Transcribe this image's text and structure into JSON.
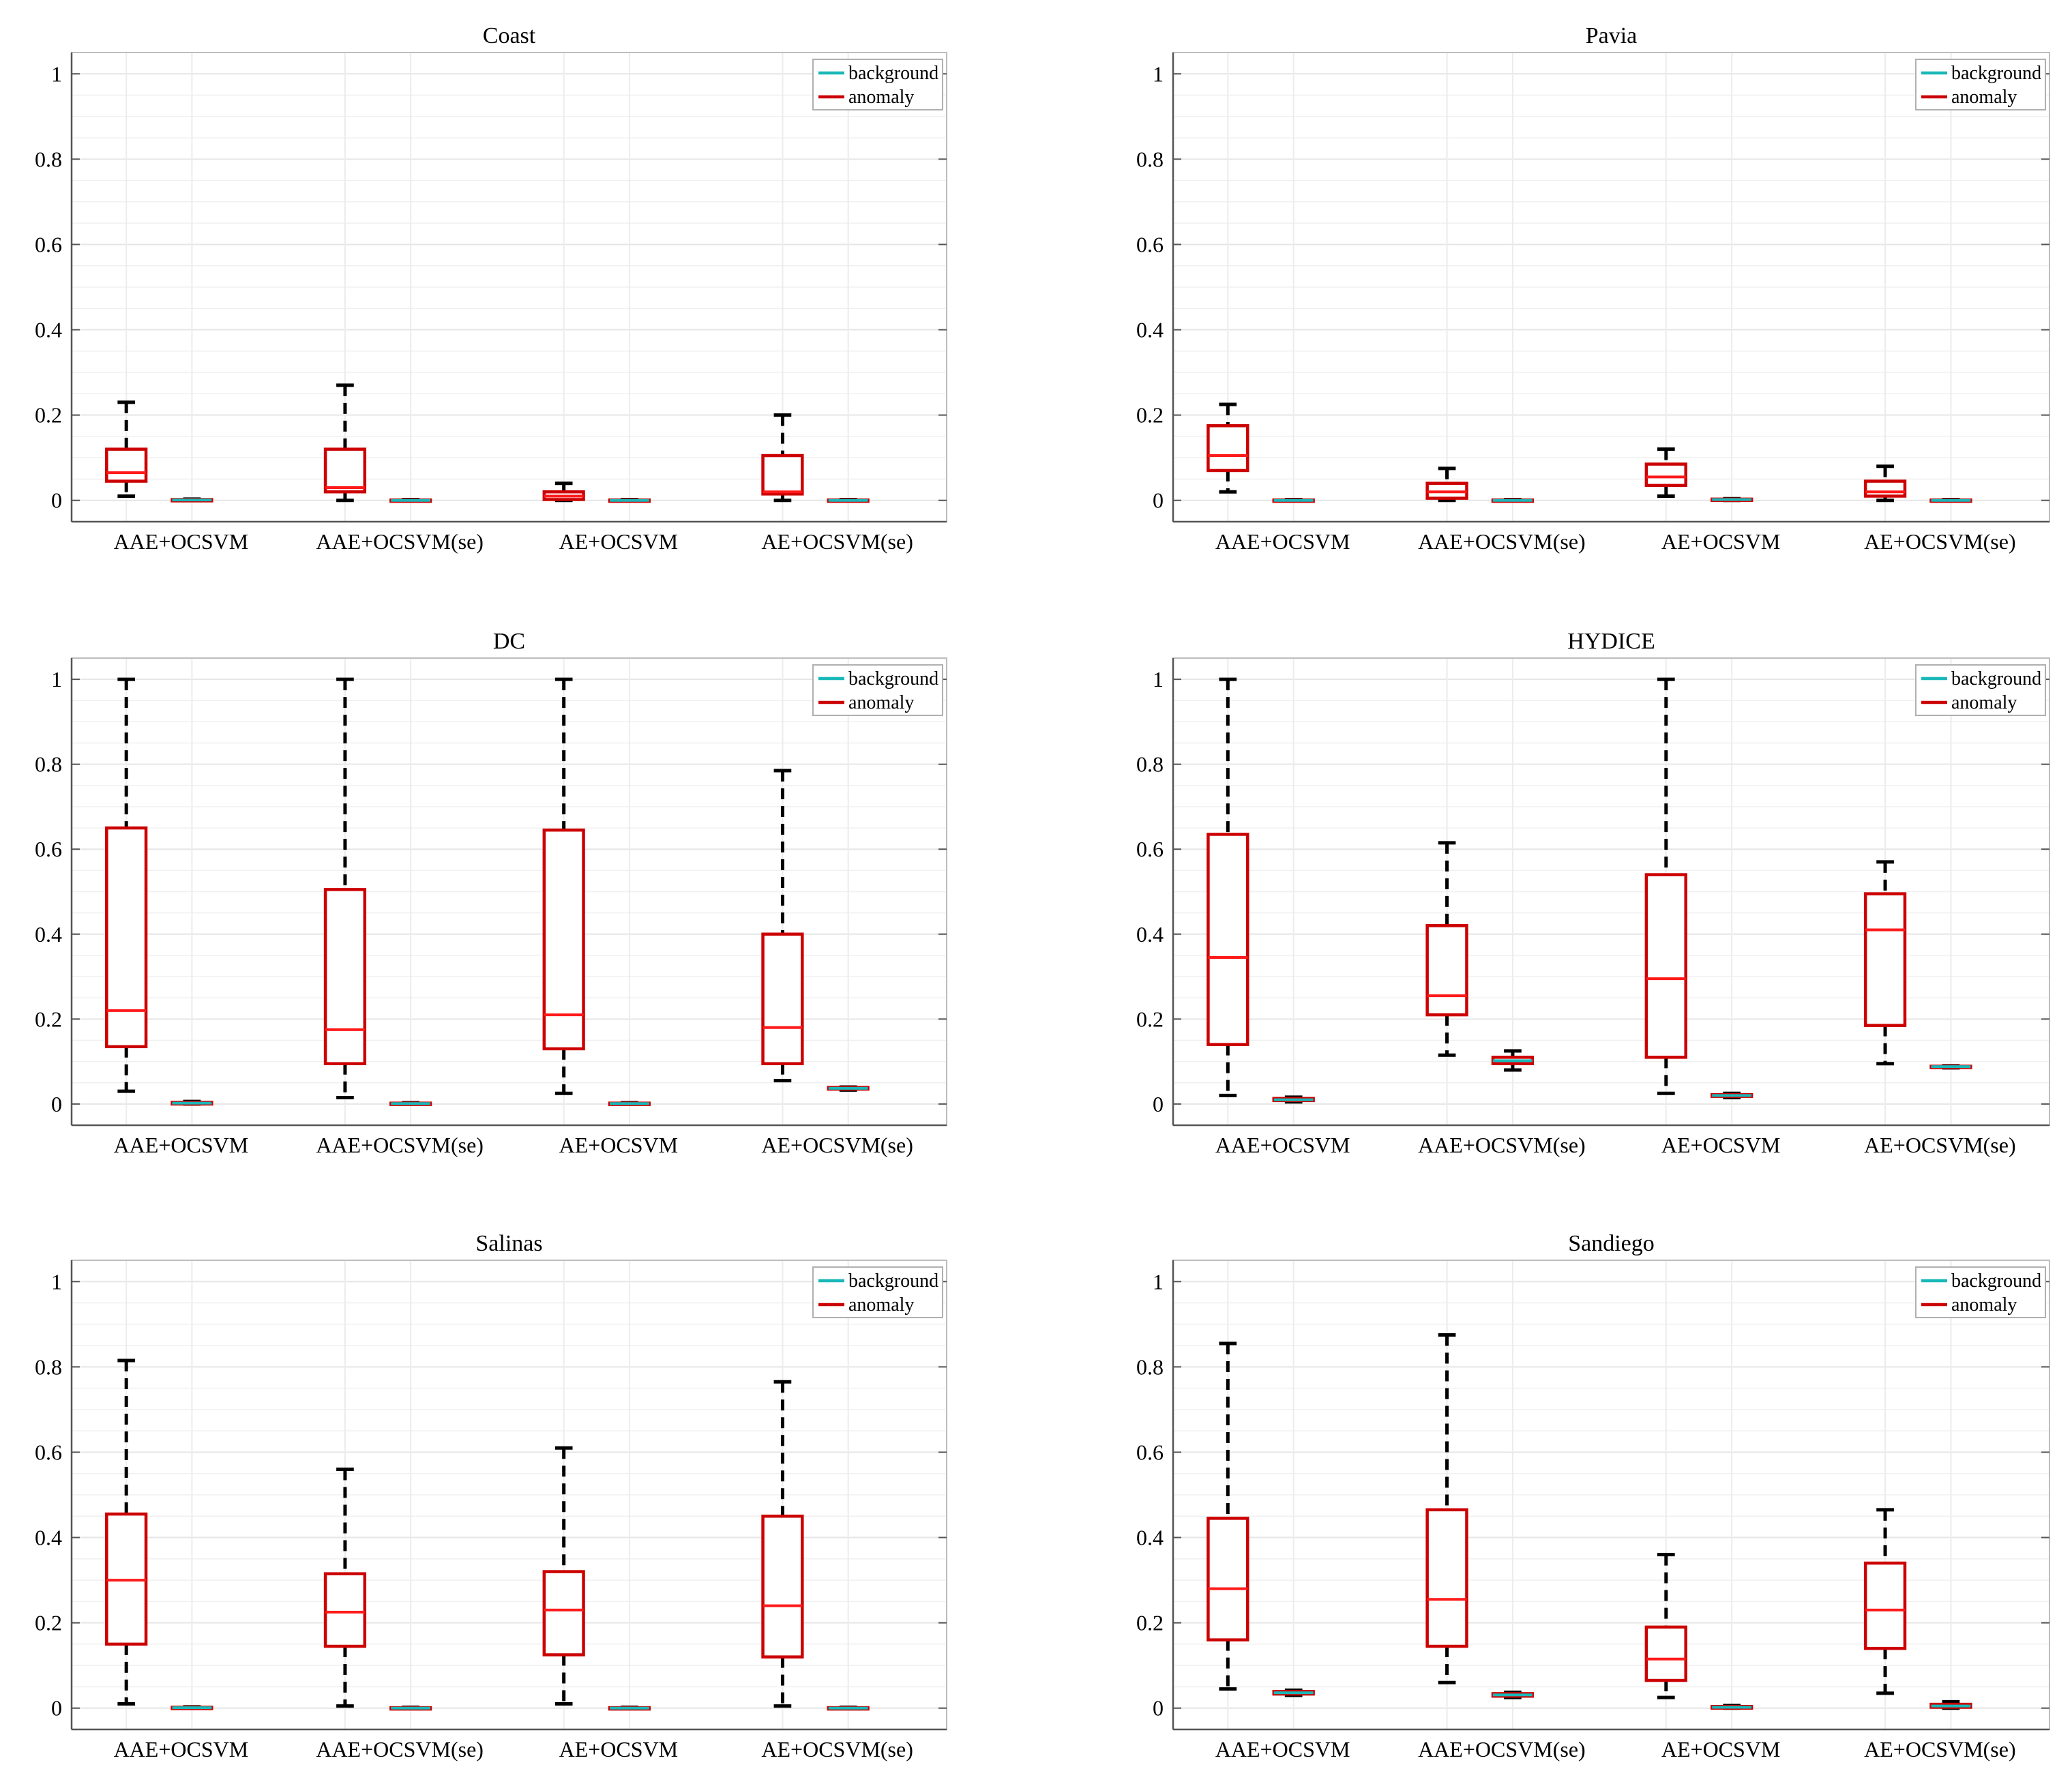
{
  "figure": {
    "categories": [
      "AAE+OCSVM",
      "AAE+OCSVM(se)",
      "AE+OCSVM",
      "AE+OCSVM(se)"
    ],
    "legend": [
      "background",
      "anomaly"
    ],
    "colors": {
      "background": "#19b8b8",
      "anomaly": "#cc0000",
      "whisker": "#000000",
      "grid": "#e6e6e6",
      "axis": "#555555"
    }
  },
  "chart_data": [
    {
      "type": "box",
      "title": "Coast",
      "categories": [
        "AAE+OCSVM",
        "AAE+OCSVM(se)",
        "AE+OCSVM",
        "AE+OCSVM(se)"
      ],
      "ylim": [
        -0.05,
        1.05
      ],
      "yticks": [
        0,
        0.2,
        0.4,
        0.6,
        0.8,
        1
      ],
      "ytick_labels": [
        "0",
        "0.2",
        "0.4",
        "0.6",
        "0.8",
        "1"
      ],
      "series": [
        {
          "name": "anomaly",
          "boxes": [
            {
              "min": 0.01,
              "q1": 0.045,
              "median": 0.065,
              "q3": 0.12,
              "max": 0.23
            },
            {
              "min": 0.0,
              "q1": 0.02,
              "median": 0.03,
              "q3": 0.12,
              "max": 0.27
            },
            {
              "min": 0.0,
              "q1": 0.002,
              "median": 0.01,
              "q3": 0.02,
              "max": 0.04
            },
            {
              "min": 0.0,
              "q1": 0.015,
              "median": 0.02,
              "q3": 0.105,
              "max": 0.2
            }
          ]
        },
        {
          "name": "background",
          "boxes": [
            {
              "min": 0.0,
              "q1": 0.0,
              "median": 0.001,
              "q3": 0.002,
              "max": 0.003
            },
            {
              "min": 0.0,
              "q1": 0.0,
              "median": 0.0,
              "q3": 0.001,
              "max": 0.002
            },
            {
              "min": 0.0,
              "q1": 0.0,
              "median": 0.0,
              "q3": 0.001,
              "max": 0.002
            },
            {
              "min": 0.0,
              "q1": 0.0,
              "median": 0.0,
              "q3": 0.001,
              "max": 0.002
            }
          ]
        }
      ]
    },
    {
      "type": "box",
      "title": "Pavia",
      "categories": [
        "AAE+OCSVM",
        "AAE+OCSVM(se)",
        "AE+OCSVM",
        "AE+OCSVM(se)"
      ],
      "ylim": [
        -0.05,
        1.05
      ],
      "yticks": [
        0,
        0.2,
        0.4,
        0.6,
        0.8,
        1
      ],
      "ytick_labels": [
        "0",
        "0.2",
        "0.4",
        "0.6",
        "0.8",
        "1"
      ],
      "series": [
        {
          "name": "anomaly",
          "boxes": [
            {
              "min": 0.02,
              "q1": 0.07,
              "median": 0.105,
              "q3": 0.175,
              "max": 0.225
            },
            {
              "min": 0.0,
              "q1": 0.005,
              "median": 0.02,
              "q3": 0.04,
              "max": 0.075
            },
            {
              "min": 0.01,
              "q1": 0.035,
              "median": 0.055,
              "q3": 0.085,
              "max": 0.12
            },
            {
              "min": 0.0,
              "q1": 0.01,
              "median": 0.02,
              "q3": 0.045,
              "max": 0.08
            }
          ]
        },
        {
          "name": "background",
          "boxes": [
            {
              "min": 0.0,
              "q1": 0.0,
              "median": 0.0,
              "q3": 0.001,
              "max": 0.002
            },
            {
              "min": 0.0,
              "q1": 0.0,
              "median": 0.0,
              "q3": 0.001,
              "max": 0.002
            },
            {
              "min": 0.0,
              "q1": 0.001,
              "median": 0.002,
              "q3": 0.003,
              "max": 0.004
            },
            {
              "min": 0.0,
              "q1": 0.0,
              "median": 0.0,
              "q3": 0.001,
              "max": 0.002
            }
          ]
        }
      ]
    },
    {
      "type": "box",
      "title": "DC",
      "categories": [
        "AAE+OCSVM",
        "AAE+OCSVM(se)",
        "AE+OCSVM",
        "AE+OCSVM(se)"
      ],
      "ylim": [
        -0.05,
        1.05
      ],
      "yticks": [
        0,
        0.2,
        0.4,
        0.6,
        0.8,
        1
      ],
      "ytick_labels": [
        "0",
        "0.2",
        "0.4",
        "0.6",
        "0.8",
        "1"
      ],
      "series": [
        {
          "name": "anomaly",
          "boxes": [
            {
              "min": 0.03,
              "q1": 0.135,
              "median": 0.22,
              "q3": 0.65,
              "max": 1.0
            },
            {
              "min": 0.015,
              "q1": 0.095,
              "median": 0.175,
              "q3": 0.505,
              "max": 1.0
            },
            {
              "min": 0.025,
              "q1": 0.13,
              "median": 0.21,
              "q3": 0.645,
              "max": 1.0
            },
            {
              "min": 0.055,
              "q1": 0.095,
              "median": 0.18,
              "q3": 0.4,
              "max": 0.785
            }
          ]
        },
        {
          "name": "background",
          "boxes": [
            {
              "min": 0.0,
              "q1": 0.0,
              "median": 0.002,
              "q3": 0.004,
              "max": 0.006
            },
            {
              "min": 0.0,
              "q1": 0.0,
              "median": 0.001,
              "q3": 0.002,
              "max": 0.003
            },
            {
              "min": 0.0,
              "q1": 0.0,
              "median": 0.001,
              "q3": 0.002,
              "max": 0.003
            },
            {
              "min": 0.033,
              "q1": 0.035,
              "median": 0.037,
              "q3": 0.039,
              "max": 0.04
            }
          ]
        }
      ]
    },
    {
      "type": "box",
      "title": "HYDICE",
      "categories": [
        "AAE+OCSVM",
        "AAE+OCSVM(se)",
        "AE+OCSVM",
        "AE+OCSVM(se)"
      ],
      "ylim": [
        -0.05,
        1.05
      ],
      "yticks": [
        0,
        0.2,
        0.4,
        0.6,
        0.8,
        1
      ],
      "ytick_labels": [
        "0",
        "0.2",
        "0.4",
        "0.6",
        "0.8",
        "1"
      ],
      "series": [
        {
          "name": "anomaly",
          "boxes": [
            {
              "min": 0.02,
              "q1": 0.14,
              "median": 0.345,
              "q3": 0.635,
              "max": 1.0
            },
            {
              "min": 0.115,
              "q1": 0.21,
              "median": 0.255,
              "q3": 0.42,
              "max": 0.615
            },
            {
              "min": 0.025,
              "q1": 0.11,
              "median": 0.295,
              "q3": 0.54,
              "max": 1.0
            },
            {
              "min": 0.095,
              "q1": 0.185,
              "median": 0.41,
              "q3": 0.495,
              "max": 0.57
            }
          ]
        },
        {
          "name": "background",
          "boxes": [
            {
              "min": 0.005,
              "q1": 0.008,
              "median": 0.01,
              "q3": 0.013,
              "max": 0.016
            },
            {
              "min": 0.08,
              "q1": 0.095,
              "median": 0.102,
              "q3": 0.11,
              "max": 0.125
            },
            {
              "min": 0.015,
              "q1": 0.018,
              "median": 0.02,
              "q3": 0.022,
              "max": 0.025
            },
            {
              "min": 0.085,
              "q1": 0.087,
              "median": 0.088,
              "q3": 0.089,
              "max": 0.09
            }
          ]
        }
      ]
    },
    {
      "type": "box",
      "title": "Salinas",
      "categories": [
        "AAE+OCSVM",
        "AAE+OCSVM(se)",
        "AE+OCSVM",
        "AE+OCSVM(se)"
      ],
      "ylim": [
        -0.05,
        1.05
      ],
      "yticks": [
        0,
        0.2,
        0.4,
        0.6,
        0.8,
        1
      ],
      "ytick_labels": [
        "0",
        "0.2",
        "0.4",
        "0.6",
        "0.8",
        "1"
      ],
      "series": [
        {
          "name": "anomaly",
          "boxes": [
            {
              "min": 0.01,
              "q1": 0.15,
              "median": 0.3,
              "q3": 0.455,
              "max": 0.815
            },
            {
              "min": 0.005,
              "q1": 0.145,
              "median": 0.225,
              "q3": 0.315,
              "max": 0.56
            },
            {
              "min": 0.01,
              "q1": 0.125,
              "median": 0.23,
              "q3": 0.32,
              "max": 0.61
            },
            {
              "min": 0.005,
              "q1": 0.12,
              "median": 0.24,
              "q3": 0.45,
              "max": 0.765
            }
          ]
        },
        {
          "name": "background",
          "boxes": [
            {
              "min": 0.0,
              "q1": 0.0,
              "median": 0.001,
              "q3": 0.002,
              "max": 0.003
            },
            {
              "min": 0.0,
              "q1": 0.0,
              "median": 0.0,
              "q3": 0.001,
              "max": 0.002
            },
            {
              "min": 0.0,
              "q1": 0.0,
              "median": 0.0,
              "q3": 0.001,
              "max": 0.002
            },
            {
              "min": 0.0,
              "q1": 0.0,
              "median": 0.0,
              "q3": 0.001,
              "max": 0.002
            }
          ]
        }
      ]
    },
    {
      "type": "box",
      "title": "Sandiego",
      "categories": [
        "AAE+OCSVM",
        "AAE+OCSVM(se)",
        "AE+OCSVM",
        "AE+OCSVM(se)"
      ],
      "ylim": [
        -0.05,
        1.05
      ],
      "yticks": [
        0,
        0.2,
        0.4,
        0.6,
        0.8,
        1
      ],
      "ytick_labels": [
        "0",
        "0.2",
        "0.4",
        "0.6",
        "0.8",
        "1"
      ],
      "series": [
        {
          "name": "anomaly",
          "boxes": [
            {
              "min": 0.045,
              "q1": 0.16,
              "median": 0.28,
              "q3": 0.445,
              "max": 0.855
            },
            {
              "min": 0.06,
              "q1": 0.145,
              "median": 0.255,
              "q3": 0.465,
              "max": 0.875
            },
            {
              "min": 0.025,
              "q1": 0.065,
              "median": 0.115,
              "q3": 0.19,
              "max": 0.36
            },
            {
              "min": 0.035,
              "q1": 0.14,
              "median": 0.23,
              "q3": 0.34,
              "max": 0.465
            }
          ]
        },
        {
          "name": "background",
          "boxes": [
            {
              "min": 0.03,
              "q1": 0.033,
              "median": 0.036,
              "q3": 0.039,
              "max": 0.042
            },
            {
              "min": 0.025,
              "q1": 0.028,
              "median": 0.031,
              "q3": 0.034,
              "max": 0.037
            },
            {
              "min": 0.0,
              "q1": 0.0,
              "median": 0.002,
              "q3": 0.004,
              "max": 0.006
            },
            {
              "min": 0.0,
              "q1": 0.002,
              "median": 0.005,
              "q3": 0.009,
              "max": 0.015
            }
          ]
        }
      ]
    }
  ]
}
